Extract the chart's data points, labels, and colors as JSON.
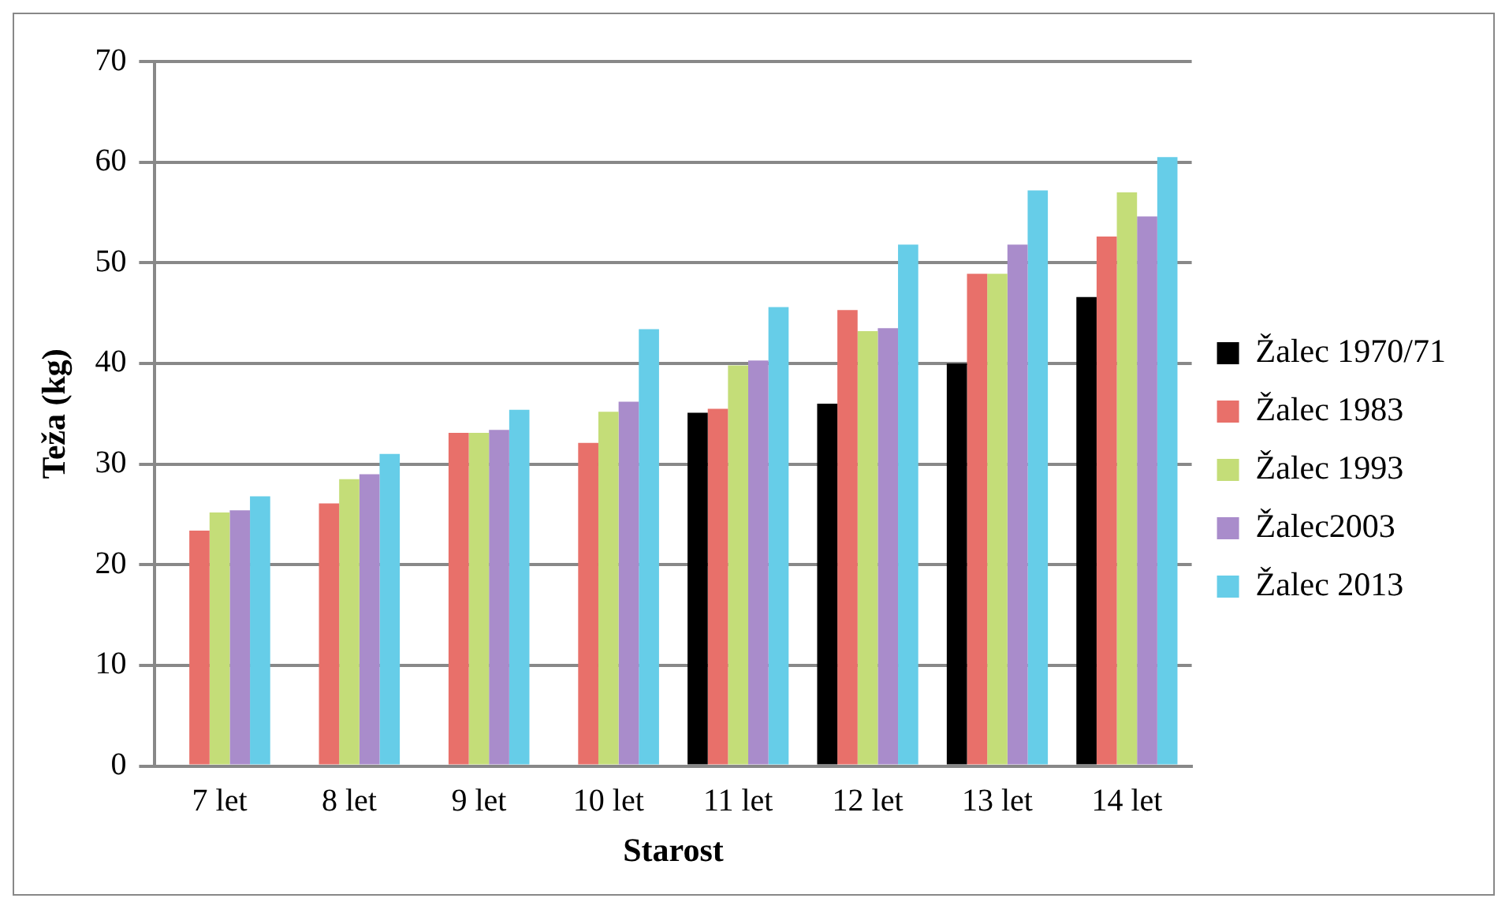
{
  "chart_data": {
    "type": "bar",
    "xlabel": "Starost",
    "ylabel": "Teža (kg)",
    "categories": [
      "7 let",
      "8 let",
      "9 let",
      "10 let",
      "11 let",
      "12 let",
      "13 let",
      "14 let"
    ],
    "series": [
      {
        "name": "Žalec 1970/71",
        "color": "#000000",
        "values": [
          null,
          null,
          null,
          null,
          35.1,
          36.0,
          40.0,
          46.6
        ]
      },
      {
        "name": "Žalec 1983",
        "color": "#e8706a",
        "values": [
          23.4,
          26.1,
          33.1,
          32.1,
          35.5,
          45.3,
          48.9,
          52.6
        ]
      },
      {
        "name": "Žalec 1993",
        "color": "#c4dd78",
        "values": [
          25.2,
          28.5,
          33.1,
          35.2,
          39.8,
          43.2,
          48.9,
          57.0
        ]
      },
      {
        "name": "Žalec2003",
        "color": "#a98ccb",
        "values": [
          25.4,
          29.0,
          33.4,
          36.2,
          40.3,
          43.5,
          51.8,
          54.6
        ]
      },
      {
        "name": "Žalec 2013",
        "color": "#66cde8",
        "values": [
          26.8,
          31.0,
          35.4,
          43.4,
          45.6,
          51.8,
          57.2,
          60.5
        ]
      }
    ],
    "ylim": [
      0,
      70
    ],
    "yticks": [
      0,
      10,
      20,
      30,
      40,
      50,
      60,
      70
    ],
    "grid": "y",
    "legend": "right"
  }
}
